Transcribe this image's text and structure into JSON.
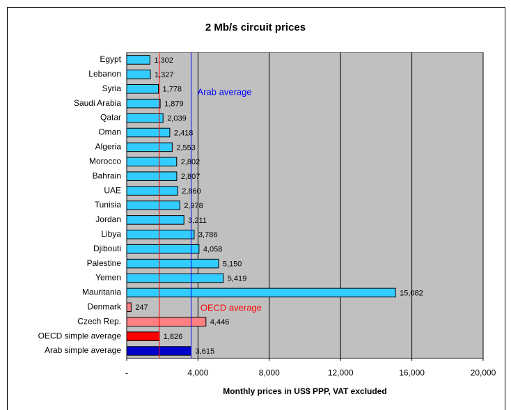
{
  "chart_data": {
    "type": "barh",
    "title": "2 Mb/s circuit prices",
    "xlabel": "Monthly prices in US$ PPP, VAT excluded",
    "categories": [
      "Egypt",
      "Lebanon",
      "Syria",
      "Saudi Arabia",
      "Qatar",
      "Oman",
      "Algeria",
      "Morocco",
      "Bahrain",
      "UAE",
      "Tunisia",
      "Jordan",
      "Libya",
      "Djibouti",
      "Palestine",
      "Yemen",
      "Mauritania",
      "Denmark",
      "Czech Rep.",
      "OECD simple average",
      "Arab simple average"
    ],
    "values": [
      1302,
      1327,
      1778,
      1879,
      2039,
      2418,
      2553,
      2802,
      2807,
      2860,
      2978,
      3211,
      3786,
      4058,
      5150,
      5419,
      15082,
      247,
      4446,
      1826,
      3615
    ],
    "value_labels": [
      "1,302",
      "1,327",
      "1,778",
      "1,879",
      "2,039",
      "2,418",
      "2,553",
      "2,802",
      "2,807",
      "2,860",
      "2,978",
      "3,211",
      "3,786",
      "4,058",
      "5,150",
      "5,419",
      "15,082",
      "247",
      "4,446",
      "1,826",
      "3,615"
    ],
    "colors": [
      "#33ccff",
      "#33ccff",
      "#33ccff",
      "#33ccff",
      "#33ccff",
      "#33ccff",
      "#33ccff",
      "#33ccff",
      "#33ccff",
      "#33ccff",
      "#33ccff",
      "#33ccff",
      "#33ccff",
      "#33ccff",
      "#33ccff",
      "#33ccff",
      "#33ccff",
      "#ff8080",
      "#ff8080",
      "#ff0000",
      "#0000cc"
    ],
    "xlim": [
      0,
      20000
    ],
    "xticks": [
      {
        "value": 0,
        "label": "-"
      },
      {
        "value": 4000,
        "label": "4,000"
      },
      {
        "value": 8000,
        "label": "8,000"
      },
      {
        "value": 12000,
        "label": "12,000"
      },
      {
        "value": 16000,
        "label": "16,000"
      },
      {
        "value": 20000,
        "label": "20,000"
      }
    ],
    "grid": true,
    "reference_lines": [
      {
        "label": "Arab average",
        "value": 3615,
        "color": "#0000ff"
      },
      {
        "label": "OECD average",
        "value": 1826,
        "color": "#ff0000"
      }
    ]
  }
}
